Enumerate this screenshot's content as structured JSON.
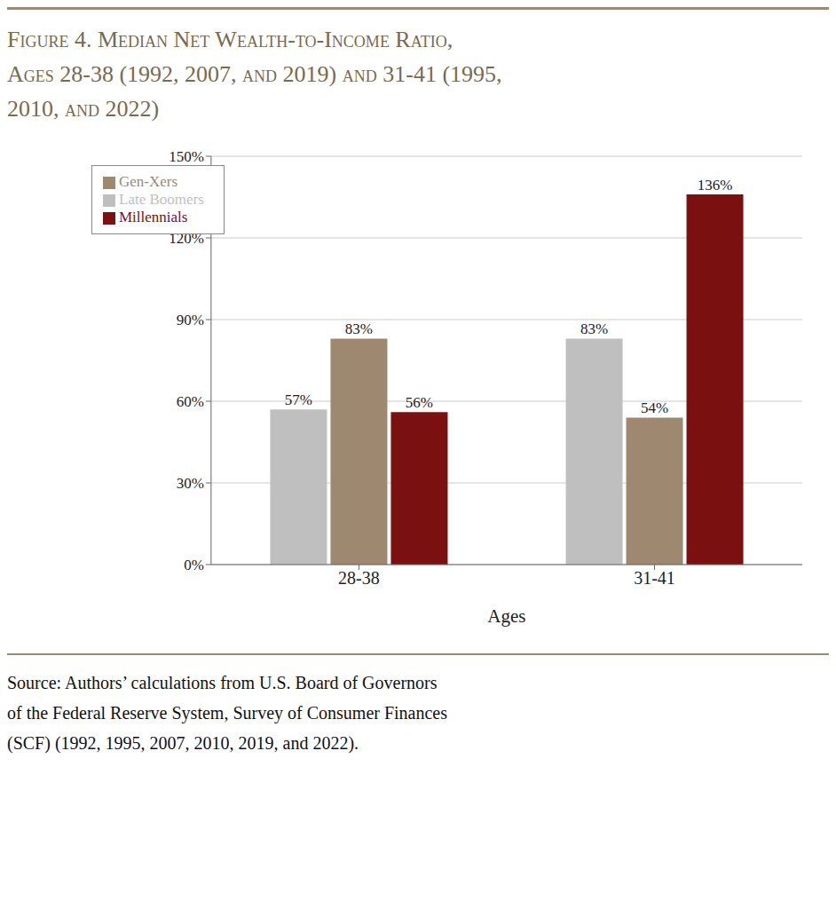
{
  "chart_data": {
    "type": "bar",
    "title": "Figure 4. Median Net Wealth-to-Income Ratio,\nAges 28-38 (1992, 2007, and 2019) and 31-41 (1995,\n2010, and 2022)",
    "categories": [
      "28-38",
      "31-41"
    ],
    "series": [
      {
        "name": "Late Boomers",
        "color": "#c0bfbf",
        "values": [
          57,
          83
        ],
        "value_labels": [
          "57%",
          "83%"
        ]
      },
      {
        "name": "Gen-Xers",
        "color": "#9e8870",
        "values": [
          83,
          54
        ],
        "value_labels": [
          "83%",
          "54%"
        ]
      },
      {
        "name": "Millennials",
        "color": "#7a1010",
        "values": [
          56,
          136
        ],
        "value_labels": [
          "56%",
          "136%"
        ]
      }
    ],
    "xlabel": "Ages",
    "ylim": [
      0,
      150
    ],
    "yticks": [
      {
        "value": 0,
        "label": "0%"
      },
      {
        "value": 30,
        "label": "30%"
      },
      {
        "value": 60,
        "label": "60%"
      },
      {
        "value": 90,
        "label": "90%"
      },
      {
        "value": 120,
        "label": "120%"
      },
      {
        "value": 150,
        "label": "150%"
      }
    ],
    "grid": true,
    "legend": "upper left",
    "data_labels": true,
    "annotations": [
      "Source: Authors’ calculations from U.S. Board of Governors",
      "of the Federal Reserve System, Survey of Consumer Finances",
      "(SCF) (1992, 1995, 2007, 2010, 2019, and 2022)."
    ]
  }
}
